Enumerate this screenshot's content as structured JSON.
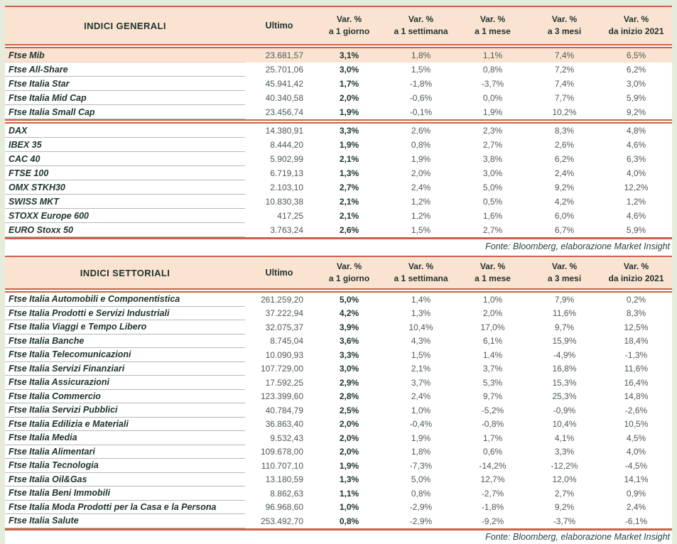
{
  "colors": {
    "accent_red": "#cf5f48",
    "header_bg": "#fbe3d2",
    "highlight_bg": "#fbe3d2",
    "name_text": "#1e332c",
    "number_text": "#4d5a54",
    "page_margin": "#e5ecdc"
  },
  "columns": {
    "ultimo": "Ultimo",
    "var_top": "Var. %",
    "var_subs": [
      "a 1 giorno",
      "a 1 settimana",
      "a 1 mese",
      "a 3 mesi",
      "da inizio 2021"
    ]
  },
  "fonte": "Fonte: Bloomberg, elaborazione Market Insight",
  "tables": [
    {
      "title": "INDICI GENERALI",
      "separator_after": [
        4
      ],
      "rows": [
        {
          "name": "Ftse Mib",
          "ultimo": "23.681,57",
          "vars": [
            "3,1%",
            "1,8%",
            "1,1%",
            "7,4%",
            "6,5%"
          ],
          "highlight": true
        },
        {
          "name": "Ftse All-Share",
          "ultimo": "25.701,06",
          "vars": [
            "3,0%",
            "1,5%",
            "0,8%",
            "7,2%",
            "6,2%"
          ]
        },
        {
          "name": "Ftse Italia Star",
          "ultimo": "45.941,42",
          "vars": [
            "1,7%",
            "-1,8%",
            "-3,7%",
            "7,4%",
            "3,0%"
          ]
        },
        {
          "name": "Ftse Italia Mid Cap",
          "ultimo": "40.340,58",
          "vars": [
            "2,0%",
            "-0,6%",
            "0,0%",
            "7,7%",
            "5,9%"
          ]
        },
        {
          "name": "Ftse Italia Small Cap",
          "ultimo": "23.456,74",
          "vars": [
            "1,9%",
            "-0,1%",
            "1,9%",
            "10,2%",
            "9,2%"
          ]
        },
        {
          "name": "DAX",
          "ultimo": "14.380,91",
          "vars": [
            "3,3%",
            "2,6%",
            "2,3%",
            "8,3%",
            "4,8%"
          ]
        },
        {
          "name": "IBEX 35",
          "ultimo": "8.444,20",
          "vars": [
            "1,9%",
            "0,8%",
            "2,7%",
            "2,6%",
            "4,6%"
          ]
        },
        {
          "name": "CAC 40",
          "ultimo": "5.902,99",
          "vars": [
            "2,1%",
            "1,9%",
            "3,8%",
            "6,2%",
            "6,3%"
          ]
        },
        {
          "name": "FTSE 100",
          "ultimo": "6.719,13",
          "vars": [
            "1,3%",
            "2,0%",
            "3,0%",
            "2,4%",
            "4,0%"
          ]
        },
        {
          "name": "OMX STKH30",
          "ultimo": "2.103,10",
          "vars": [
            "2,7%",
            "2,4%",
            "5,0%",
            "9,2%",
            "12,2%"
          ]
        },
        {
          "name": "SWISS MKT",
          "ultimo": "10.830,38",
          "vars": [
            "2,1%",
            "1,2%",
            "0,5%",
            "4,2%",
            "1,2%"
          ]
        },
        {
          "name": "STOXX Europe 600",
          "ultimo": "417,25",
          "vars": [
            "2,1%",
            "1,2%",
            "1,6%",
            "6,0%",
            "4,6%"
          ]
        },
        {
          "name": "EURO Stoxx 50",
          "ultimo": "3.763,24",
          "vars": [
            "2,6%",
            "1,5%",
            "2,7%",
            "6,7%",
            "5,9%"
          ]
        }
      ]
    },
    {
      "title": "INDICI SETTORIALI",
      "separator_after": [],
      "rows": [
        {
          "name": "Ftse Italia Automobili e Componentistica",
          "ultimo": "261.259,20",
          "vars": [
            "5,0%",
            "1,4%",
            "1,0%",
            "7,9%",
            "0,2%"
          ]
        },
        {
          "name": "Ftse Italia Prodotti e Servizi Industriali",
          "ultimo": "37.222,94",
          "vars": [
            "4,2%",
            "1,3%",
            "2,0%",
            "11,6%",
            "8,3%"
          ]
        },
        {
          "name": "Ftse Italia Viaggi e Tempo Libero",
          "ultimo": "32.075,37",
          "vars": [
            "3,9%",
            "10,4%",
            "17,0%",
            "9,7%",
            "12,5%"
          ]
        },
        {
          "name": "Ftse Italia Banche",
          "ultimo": "8.745,04",
          "vars": [
            "3,6%",
            "4,3%",
            "6,1%",
            "15,9%",
            "18,4%"
          ]
        },
        {
          "name": "Ftse Italia Telecomunicazioni",
          "ultimo": "10.090,93",
          "vars": [
            "3,3%",
            "1,5%",
            "1,4%",
            "-4,9%",
            "-1,3%"
          ]
        },
        {
          "name": "Ftse Italia Servizi Finanziari",
          "ultimo": "107.729,00",
          "vars": [
            "3,0%",
            "2,1%",
            "3,7%",
            "16,8%",
            "11,6%"
          ]
        },
        {
          "name": "Ftse Italia Assicurazioni",
          "ultimo": "17.592,25",
          "vars": [
            "2,9%",
            "3,7%",
            "5,3%",
            "15,3%",
            "16,4%"
          ]
        },
        {
          "name": "Ftse Italia Commercio",
          "ultimo": "123.399,60",
          "vars": [
            "2,8%",
            "2,4%",
            "9,7%",
            "25,3%",
            "14,8%"
          ]
        },
        {
          "name": "Ftse Italia Servizi Pubblici",
          "ultimo": "40.784,79",
          "vars": [
            "2,5%",
            "1,0%",
            "-5,2%",
            "-0,9%",
            "-2,6%"
          ]
        },
        {
          "name": "Ftse Italia Edilizia e Materiali",
          "ultimo": "36.863,40",
          "vars": [
            "2,0%",
            "-0,4%",
            "-0,8%",
            "10,4%",
            "10,5%"
          ]
        },
        {
          "name": "Ftse Italia Media",
          "ultimo": "9.532,43",
          "vars": [
            "2,0%",
            "1,9%",
            "1,7%",
            "4,1%",
            "4,5%"
          ]
        },
        {
          "name": "Ftse Italia Alimentari",
          "ultimo": "109.678,00",
          "vars": [
            "2,0%",
            "1,8%",
            "0,6%",
            "3,3%",
            "4,0%"
          ]
        },
        {
          "name": "Ftse Italia Tecnologia",
          "ultimo": "110.707,10",
          "vars": [
            "1,9%",
            "-7,3%",
            "-14,2%",
            "-12,2%",
            "-4,5%"
          ]
        },
        {
          "name": "Ftse Italia Oil&Gas",
          "ultimo": "13.180,59",
          "vars": [
            "1,3%",
            "5,0%",
            "12,7%",
            "12,0%",
            "14,1%"
          ]
        },
        {
          "name": "Ftse Italia Beni Immobili",
          "ultimo": "8.862,63",
          "vars": [
            "1,1%",
            "0,8%",
            "-2,7%",
            "2,7%",
            "0,9%"
          ]
        },
        {
          "name": "Ftse Italia Moda Prodotti per la Casa e la Persona",
          "ultimo": "96.968,60",
          "vars": [
            "1,0%",
            "-2,9%",
            "-1,8%",
            "9,2%",
            "2,4%"
          ]
        },
        {
          "name": "Ftse Italia Salute",
          "ultimo": "253.492,70",
          "vars": [
            "0,8%",
            "-2,9%",
            "-9,2%",
            "-3,7%",
            "-6,1%"
          ]
        }
      ]
    }
  ]
}
